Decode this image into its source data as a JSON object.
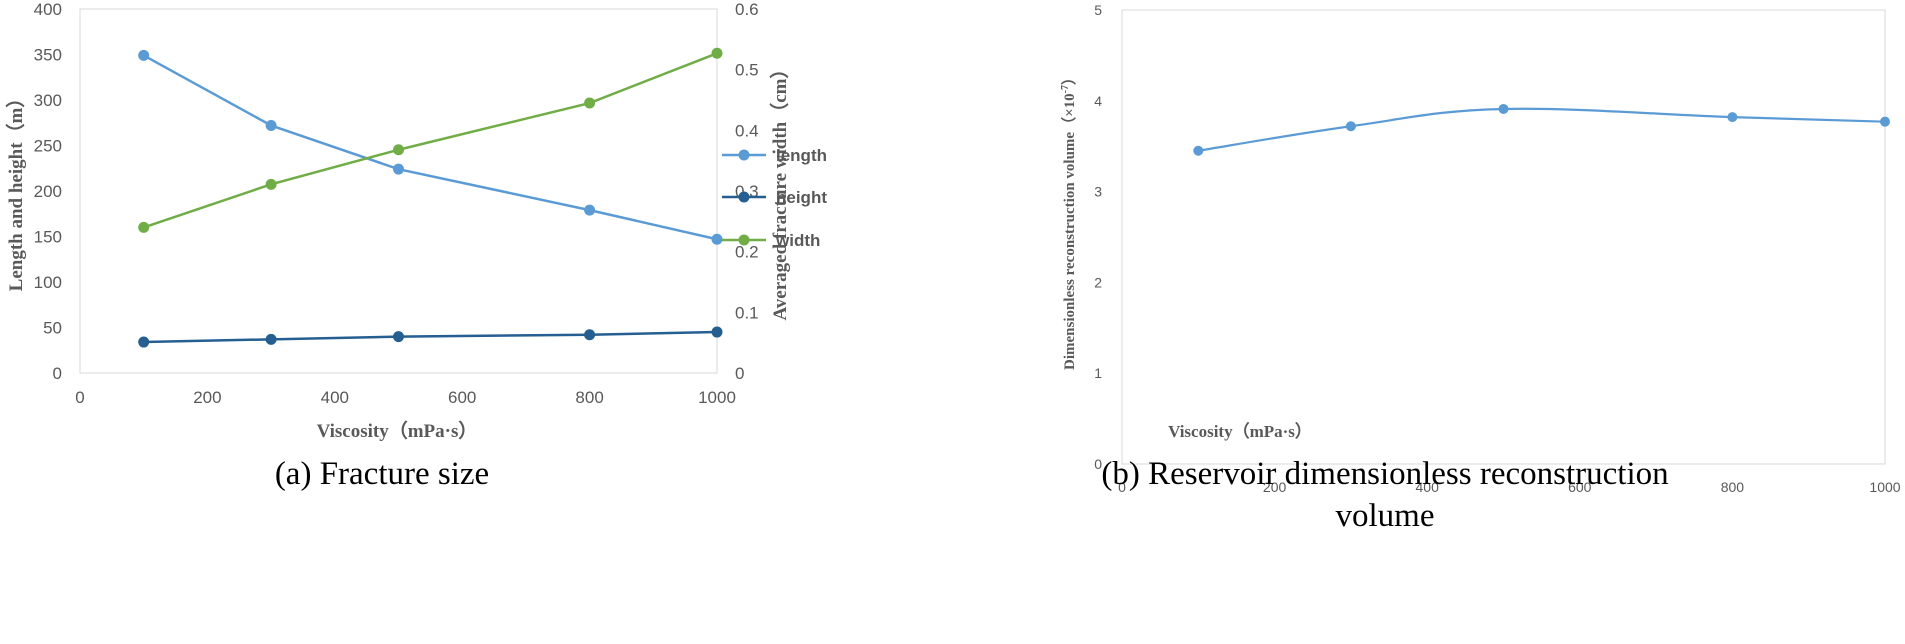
{
  "chart_data": [
    {
      "type": "line",
      "caption": "(a) Fracture size",
      "xlabel": "Viscosity（mPa·s）",
      "ylabel": "Length and height（m）",
      "y2label": "Averaged fracture width（cm）",
      "xlim": [
        0,
        1000
      ],
      "ylim": [
        0,
        400
      ],
      "y2lim": [
        0,
        0.6
      ],
      "x_ticks": [
        "0",
        "200",
        "400",
        "600",
        "800",
        "1000"
      ],
      "y_ticks": [
        "0",
        "50",
        "100",
        "150",
        "200",
        "250",
        "300",
        "350",
        "400"
      ],
      "y2_ticks": [
        "0",
        "0.1",
        "0.2",
        "0.3",
        "0.4",
        "0.5",
        "0.6"
      ],
      "x": [
        100,
        300,
        500,
        800,
        1000
      ],
      "grid": false,
      "legend_position": "right",
      "series": [
        {
          "name": "length",
          "axis": "left",
          "color": "#5B9BD5",
          "values": [
            349,
            272,
            224,
            179,
            147
          ]
        },
        {
          "name": "height",
          "axis": "left",
          "color": "#255E91",
          "values": [
            34,
            37,
            40,
            42,
            45
          ]
        },
        {
          "name": "width",
          "axis": "right",
          "color": "#70AD47",
          "values": [
            0.24,
            0.311,
            0.368,
            0.445,
            0.527
          ]
        }
      ]
    },
    {
      "type": "line",
      "smooth": true,
      "caption": "(b) Reservoir dimensionless reconstruction volume",
      "xlabel": "Viscosity（mPa·s）",
      "ylabel": "Dimensionless reconstruction volume（×10",
      "ylabel_exponent": "-7",
      "ylabel_close": "）",
      "xlim": [
        0,
        1000
      ],
      "ylim": [
        0,
        5
      ],
      "x_ticks": [
        "0",
        "200",
        "400",
        "600",
        "800",
        "1000"
      ],
      "y_ticks": [
        "0",
        "1",
        "2",
        "3",
        "4",
        "5"
      ],
      "x": [
        100,
        300,
        500,
        800,
        1000
      ],
      "grid": false,
      "series": [
        {
          "name": "volume",
          "color": "#5B9BD5",
          "values": [
            3.45,
            3.72,
            3.91,
            3.82,
            3.77
          ]
        }
      ]
    }
  ]
}
